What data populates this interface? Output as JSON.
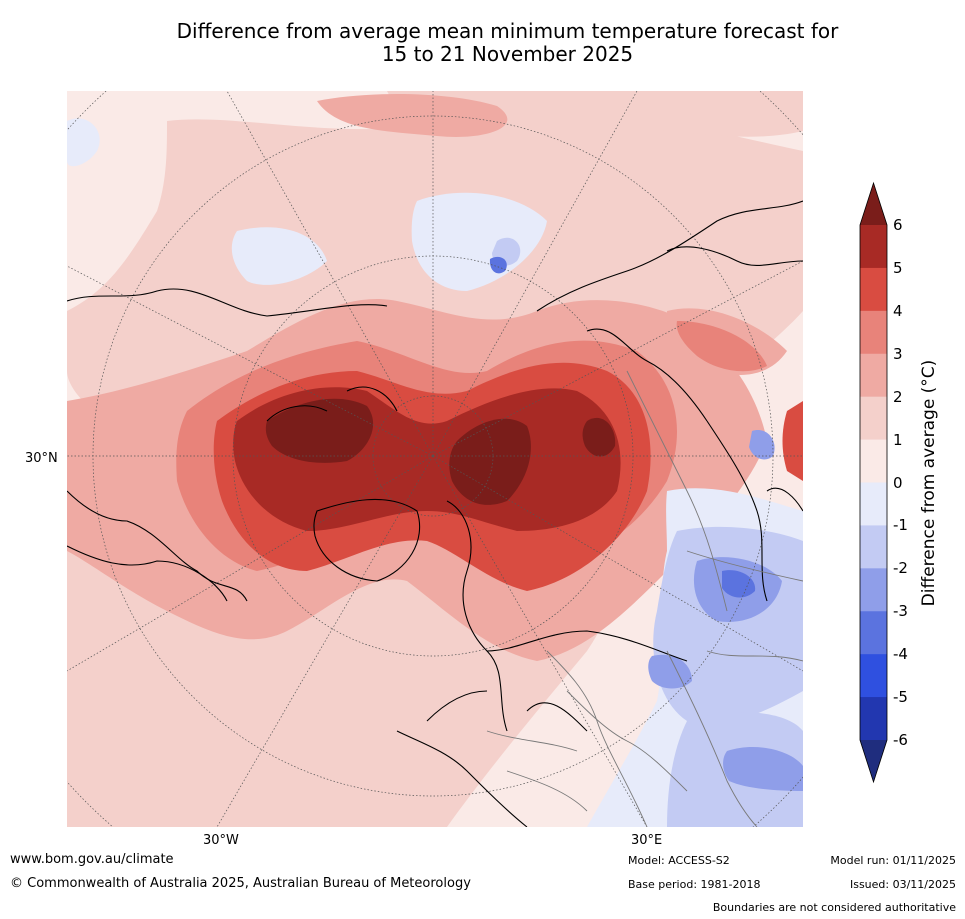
{
  "title": {
    "line1": "Difference from average mean minimum temperature forecast for",
    "line2": "15 to 21 November 2025"
  },
  "axis_labels": {
    "lat_30n": "30°N",
    "lon_30w": "30°W",
    "lon_30e": "30°E"
  },
  "colorbar": {
    "label": "Difference from average (°C)",
    "ticks": [
      "6",
      "5",
      "4",
      "3",
      "2",
      "1",
      "0",
      "-1",
      "-2",
      "-3",
      "-4",
      "-5",
      "-6"
    ],
    "colors": {
      "above6": "#7a1d1a",
      "5to6": "#a82a25",
      "4to5": "#d94c41",
      "3to4": "#e8837a",
      "2to3": "#efaaa3",
      "1to2": "#f4d0cb",
      "0to1": "#faeae7",
      "m1to0": "#e7ebfa",
      "m2tom1": "#c3cbf3",
      "m3tom2": "#8f9ee9",
      "m4tom3": "#5b73df",
      "m5tom4": "#2f50e0",
      "m6tom5": "#2237b0",
      "below-6": "#1f2d7e"
    }
  },
  "footer": {
    "website": "www.bom.gov.au/climate",
    "copyright": "© Commonwealth of Australia 2025, Australian Bureau of Meteorology",
    "model": "Model: ACCESS-S2",
    "base_period": "Base period: 1981-2018",
    "model_run": "Model run: 01/11/2025",
    "issued": "Issued: 03/11/2025",
    "disclaimer": "Boundaries are not considered authoritative"
  }
}
